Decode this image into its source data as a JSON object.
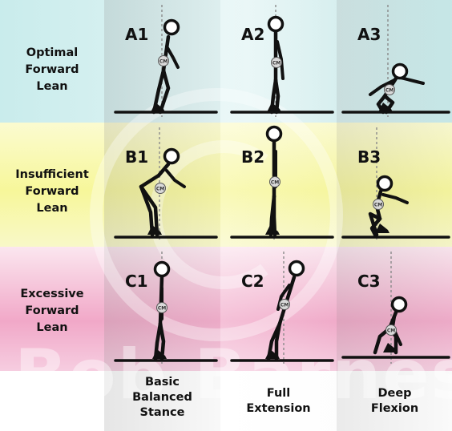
{
  "rows": [
    {
      "label_lines": [
        "Optimal",
        "Forward",
        "Lean"
      ]
    },
    {
      "label_lines": [
        "Insufficient",
        "Forward",
        "Lean"
      ]
    },
    {
      "label_lines": [
        "Excessive",
        "Forward",
        "Lean"
      ]
    }
  ],
  "columns": [
    {
      "label_lines": [
        "Basic",
        "Balanced",
        "Stance"
      ]
    },
    {
      "label_lines": [
        "Full",
        "Extension"
      ]
    },
    {
      "label_lines": [
        "Deep",
        "Flexion"
      ]
    }
  ],
  "panels": [
    {
      "id": "A1",
      "label": "A1",
      "cm": "CM"
    },
    {
      "id": "A2",
      "label": "A2",
      "cm": "CM"
    },
    {
      "id": "A3",
      "label": "A3",
      "cm": "CM"
    },
    {
      "id": "B1",
      "label": "B1",
      "cm": "CM"
    },
    {
      "id": "B2",
      "label": "B2",
      "cm": "CM"
    },
    {
      "id": "B3",
      "label": "B3",
      "cm": "CM"
    },
    {
      "id": "C1",
      "label": "C1",
      "cm": "CM"
    },
    {
      "id": "C2",
      "label": "C2",
      "cm": "CM"
    },
    {
      "id": "C3",
      "label": "C3",
      "cm": "CM"
    }
  ],
  "watermark": {
    "text": "Bob Barnes",
    "symbol": "©"
  },
  "colors": {
    "ink": "#111111",
    "plumb_line": "#8a8a8a",
    "cm_fill": "#d9d9d9",
    "row_a": "#cdeeee",
    "row_b": "#f7f79a",
    "row_c": "#f1a8c8"
  }
}
